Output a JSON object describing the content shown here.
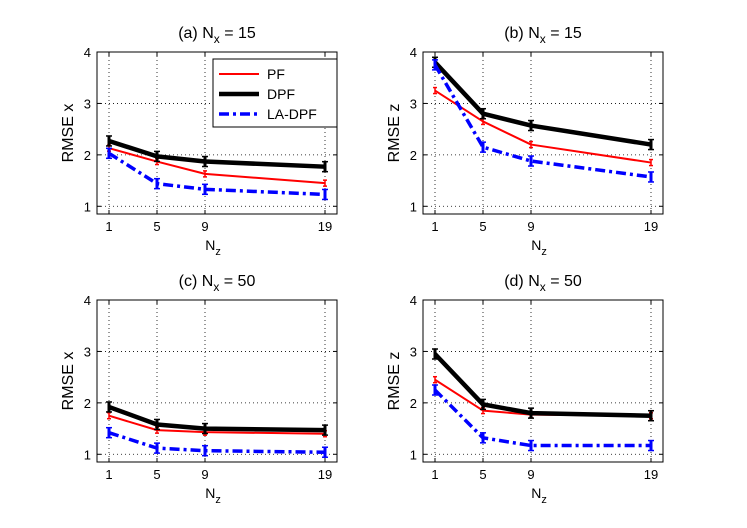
{
  "chart_data": [
    {
      "type": "line",
      "title": "(a) N",
      "title_sub": "x",
      "title_tail": " = 15",
      "xlabel": "N",
      "xlabel_sub": "z",
      "ylabel": "RMSE x",
      "x": [
        1,
        5,
        9,
        19
      ],
      "x_tick_labels": [
        "1",
        "5",
        "9",
        "19"
      ],
      "y_ticks": [
        1,
        2,
        3,
        4
      ],
      "y_tick_labels": [
        "1",
        "2",
        "3",
        "4"
      ],
      "xlim": [
        0,
        20
      ],
      "ylim": [
        0.85,
        4
      ],
      "grid": true,
      "legend": "top-right",
      "series": [
        {
          "name": "PF",
          "color": "#ff0000",
          "style": "solid",
          "values": [
            2.13,
            1.87,
            1.63,
            1.45
          ]
        },
        {
          "name": "DPF",
          "color": "#000000",
          "style": "solid-thick",
          "values": [
            2.27,
            1.97,
            1.87,
            1.77
          ]
        },
        {
          "name": "LA-DPF",
          "color": "#0000ff",
          "style": "dashdot",
          "values": [
            2.03,
            1.44,
            1.33,
            1.23
          ]
        }
      ]
    },
    {
      "type": "line",
      "title": "(b) N",
      "title_sub": "x",
      "title_tail": " = 15",
      "xlabel": "N",
      "xlabel_sub": "z",
      "ylabel": "RMSE z",
      "x": [
        1,
        5,
        9,
        19
      ],
      "x_tick_labels": [
        "1",
        "5",
        "9",
        "19"
      ],
      "y_ticks": [
        1,
        2,
        3,
        4
      ],
      "y_tick_labels": [
        "1",
        "2",
        "3",
        "4"
      ],
      "xlim": [
        0,
        20
      ],
      "ylim": [
        0.85,
        4
      ],
      "grid": true,
      "series": [
        {
          "name": "PF",
          "color": "#ff0000",
          "style": "solid",
          "values": [
            3.25,
            2.65,
            2.2,
            1.85
          ]
        },
        {
          "name": "DPF",
          "color": "#000000",
          "style": "solid-thick",
          "values": [
            3.8,
            2.8,
            2.57,
            2.2
          ]
        },
        {
          "name": "LA-DPF",
          "color": "#0000ff",
          "style": "dashdot",
          "values": [
            3.75,
            2.15,
            1.88,
            1.57
          ]
        }
      ]
    },
    {
      "type": "line",
      "title": "(c) N",
      "title_sub": "x",
      "title_tail": " = 50",
      "xlabel": "N",
      "xlabel_sub": "z",
      "ylabel": "RMSE x",
      "x": [
        1,
        5,
        9,
        19
      ],
      "x_tick_labels": [
        "1",
        "5",
        "9",
        "19"
      ],
      "y_ticks": [
        1,
        2,
        3,
        4
      ],
      "y_tick_labels": [
        "1",
        "2",
        "3",
        "4"
      ],
      "xlim": [
        0,
        20
      ],
      "ylim": [
        0.85,
        4
      ],
      "grid": true,
      "series": [
        {
          "name": "PF",
          "color": "#ff0000",
          "style": "solid",
          "values": [
            1.75,
            1.47,
            1.43,
            1.4
          ]
        },
        {
          "name": "DPF",
          "color": "#000000",
          "style": "solid-thick",
          "values": [
            1.92,
            1.58,
            1.5,
            1.47
          ]
        },
        {
          "name": "LA-DPF",
          "color": "#0000ff",
          "style": "dashdot",
          "values": [
            1.42,
            1.12,
            1.07,
            1.04
          ]
        }
      ]
    },
    {
      "type": "line",
      "title": "(d) N",
      "title_sub": "x",
      "title_tail": " = 50",
      "xlabel": "N",
      "xlabel_sub": "z",
      "ylabel": "RMSE z",
      "x": [
        1,
        5,
        9,
        19
      ],
      "x_tick_labels": [
        "1",
        "5",
        "9",
        "19"
      ],
      "y_ticks": [
        1,
        2,
        3,
        4
      ],
      "y_tick_labels": [
        "1",
        "2",
        "3",
        "4"
      ],
      "xlim": [
        0,
        20
      ],
      "ylim": [
        0.85,
        4
      ],
      "grid": true,
      "series": [
        {
          "name": "PF",
          "color": "#ff0000",
          "style": "solid",
          "values": [
            2.45,
            1.85,
            1.77,
            1.75
          ]
        },
        {
          "name": "DPF",
          "color": "#000000",
          "style": "solid-thick",
          "values": [
            2.95,
            1.97,
            1.8,
            1.75
          ]
        },
        {
          "name": "LA-DPF",
          "color": "#0000ff",
          "style": "dashdot",
          "values": [
            2.25,
            1.32,
            1.17,
            1.17
          ]
        }
      ]
    }
  ]
}
